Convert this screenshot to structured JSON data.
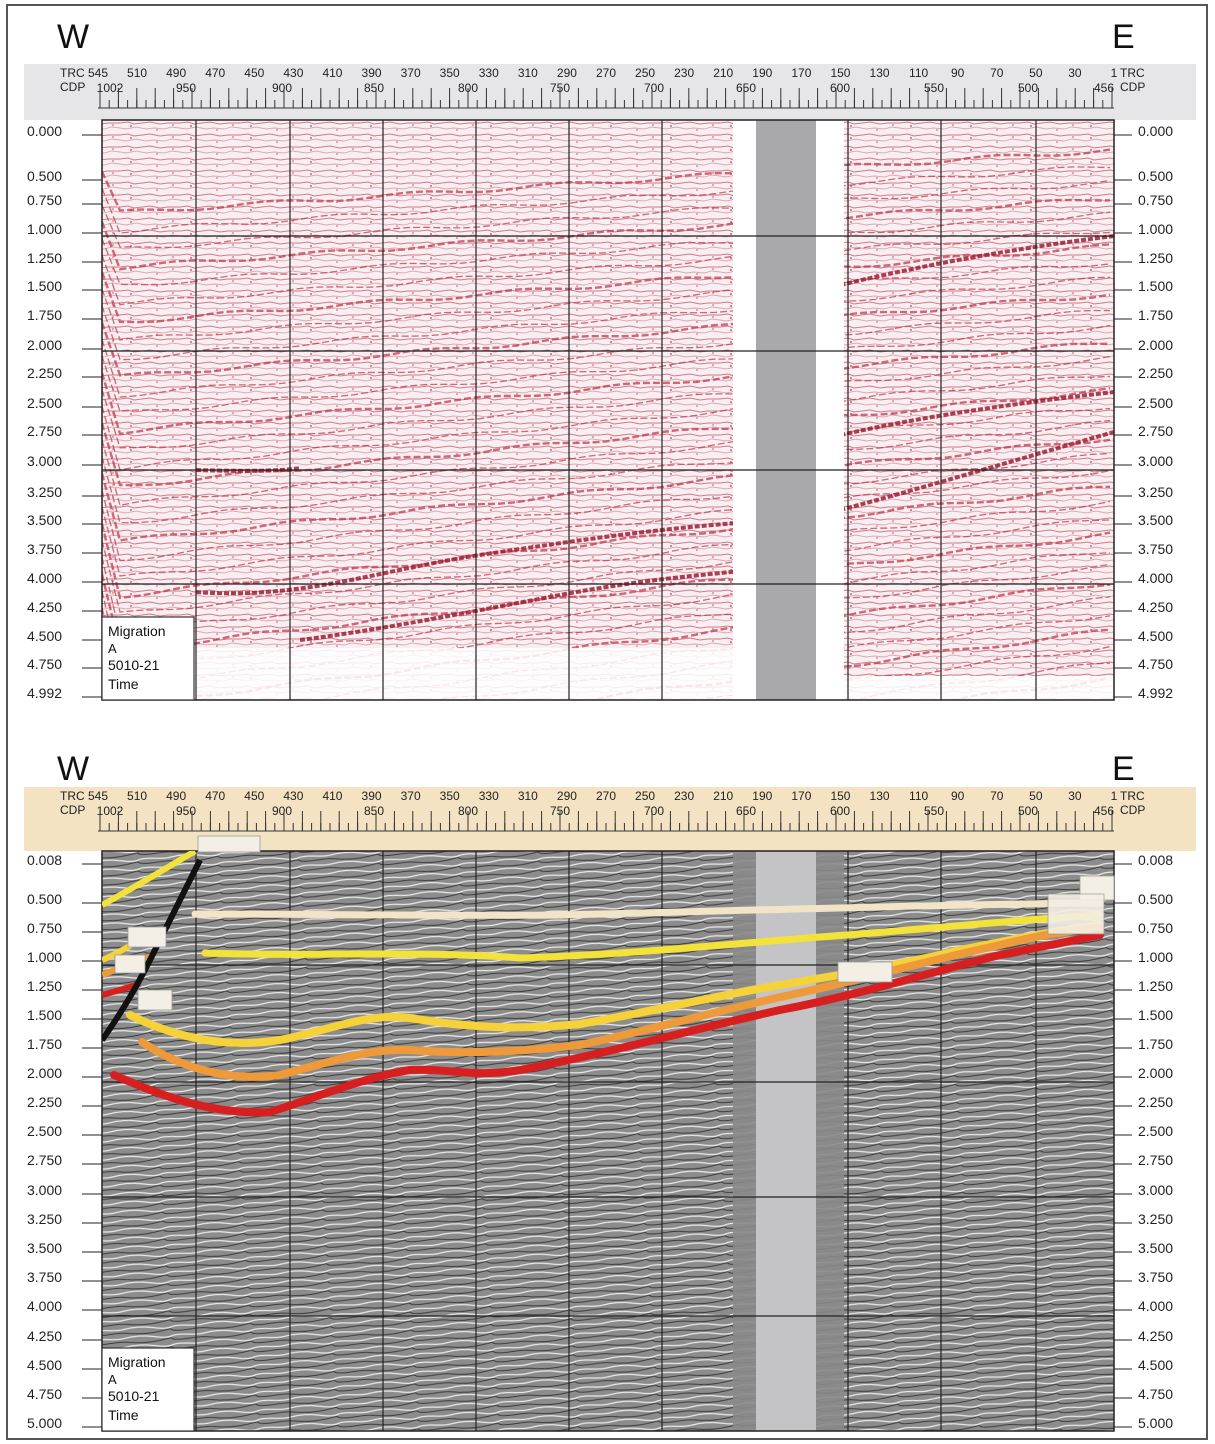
{
  "panels": [
    {
      "id": "top",
      "west_label": "W",
      "east_label": "E",
      "header": {
        "trc_label": "TRC",
        "cdp_label": "CDP",
        "trc_ticks": [
          "545",
          "510",
          "490",
          "470",
          "450",
          "430",
          "410",
          "390",
          "370",
          "350",
          "330",
          "310",
          "290",
          "270",
          "250",
          "230",
          "210",
          "190",
          "170",
          "150",
          "130",
          "110",
          "90",
          "70",
          "50",
          "30",
          "1"
        ],
        "cdp_ticks": [
          "1002",
          "950",
          "900",
          "850",
          "800",
          "750",
          "700",
          "650",
          "600",
          "550",
          "500",
          "456"
        ]
      },
      "time_labels_left": [
        "0.000",
        "0.500",
        "0.750",
        "1.000",
        "1.250",
        "1.500",
        "1.750",
        "2.000",
        "2.250",
        "2.500",
        "2.750",
        "3.000",
        "3.250",
        "3.500",
        "3.750",
        "4.000",
        "4.250",
        "4.500",
        "4.750",
        "4.992"
      ],
      "time_labels_right": [
        "0.000",
        "0.500",
        "0.750",
        "1.000",
        "1.250",
        "1.500",
        "1.750",
        "2.000",
        "2.250",
        "2.500",
        "2.750",
        "3.000",
        "3.250",
        "3.500",
        "3.750",
        "4.000",
        "4.250",
        "4.500",
        "4.750",
        "4.992"
      ],
      "info_box": [
        "Migration",
        "A",
        "5010-21",
        "Time"
      ],
      "style": "color-variable-density",
      "colors": {
        "trace": "#c23a4f",
        "background": "#f6eef0",
        "gap": "#a9a9ab"
      }
    },
    {
      "id": "bottom",
      "west_label": "W",
      "east_label": "E",
      "header": {
        "trc_label": "TRC",
        "cdp_label": "CDP",
        "trc_ticks": [
          "545",
          "510",
          "490",
          "470",
          "450",
          "430",
          "410",
          "390",
          "370",
          "350",
          "330",
          "310",
          "290",
          "270",
          "250",
          "230",
          "210",
          "190",
          "170",
          "150",
          "130",
          "110",
          "90",
          "70",
          "50",
          "30",
          "1"
        ],
        "cdp_ticks": [
          "1002",
          "950",
          "900",
          "850",
          "800",
          "750",
          "700",
          "650",
          "600",
          "550",
          "500",
          "456"
        ]
      },
      "time_labels_left": [
        "0.008",
        "0.500",
        "0.750",
        "1.000",
        "1.250",
        "1.500",
        "1.750",
        "2.000",
        "2.250",
        "2.500",
        "2.750",
        "3.000",
        "3.250",
        "3.500",
        "3.750",
        "4.000",
        "4.250",
        "4.500",
        "4.750",
        "5.000"
      ],
      "time_labels_right": [
        "0.008",
        "0.500",
        "0.750",
        "1.000",
        "1.250",
        "1.500",
        "1.750",
        "2.000",
        "2.250",
        "2.500",
        "2.750",
        "3.000",
        "3.250",
        "3.500",
        "3.750",
        "4.000",
        "4.250",
        "4.500",
        "4.750",
        "5.000"
      ],
      "info_box": [
        "Migration",
        "A",
        "5010-21",
        "Time"
      ],
      "style": "grayscale-wiggle",
      "colors": {
        "background": "#8a8a8a",
        "gap": "#c4c4c6",
        "header": "#f3e3c3"
      },
      "horizons": [
        {
          "color": "#f1e4c7"
        },
        {
          "color": "#f3e23a"
        },
        {
          "color": "#f6d23a"
        },
        {
          "color": "#ef9a3a"
        },
        {
          "color": "#d81f1f"
        },
        {
          "color": "#111111"
        }
      ]
    }
  ]
}
